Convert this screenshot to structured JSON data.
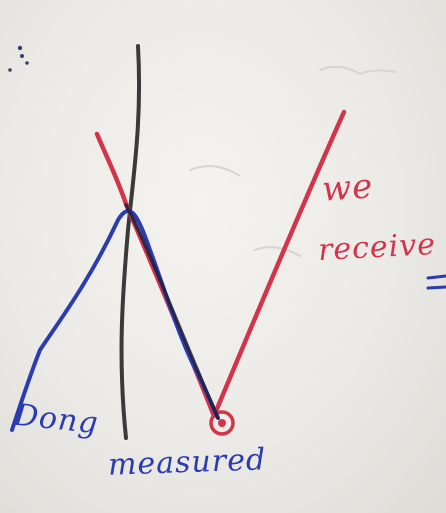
{
  "annotations": {
    "red_label_line1": "we",
    "red_label_line2": "receive",
    "blue_label_line1": "Dong",
    "blue_label_line2": "measured"
  },
  "ink_colors": {
    "red": "#d3344a",
    "blue": "#2b3bb0",
    "black": "#3a3a3a",
    "paper": "#efeeeb"
  }
}
